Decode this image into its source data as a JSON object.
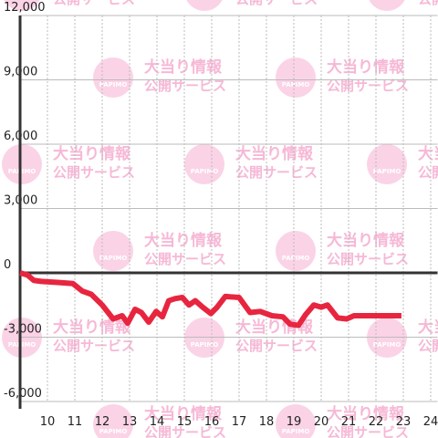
{
  "chart_data": {
    "type": "line",
    "watermark": {
      "logo": "PAPIMO",
      "line1": "大当り情報",
      "line2": "公開サービス"
    },
    "x": [
      9.0,
      9.27,
      9.5,
      9.77,
      10.43,
      10.93,
      11.27,
      11.6,
      12.0,
      12.4,
      12.73,
      12.93,
      13.2,
      13.43,
      13.7,
      13.97,
      14.2,
      14.43,
      14.67,
      14.93,
      15.17,
      15.4,
      15.67,
      15.97,
      16.2,
      16.5,
      17.0,
      17.4,
      17.77,
      18.2,
      18.6,
      18.87,
      19.17,
      19.43,
      19.73,
      20.0,
      20.23,
      20.6,
      20.93,
      21.2,
      22.93
    ],
    "series": [
      {
        "color": "#e8253f",
        "values": [
          0,
          -100,
          -350,
          -400,
          -450,
          -500,
          -850,
          -1000,
          -1500,
          -2150,
          -2000,
          -2350,
          -1700,
          -1850,
          -2300,
          -1800,
          -2050,
          -1300,
          -1200,
          -1150,
          -1500,
          -1300,
          -1600,
          -1900,
          -1600,
          -1100,
          -1150,
          -1850,
          -1800,
          -2000,
          -2050,
          -2400,
          -2450,
          -1950,
          -1500,
          -1600,
          -1500,
          -2100,
          -2150,
          -2000,
          -2000
        ]
      }
    ],
    "xlim": [
      9,
      24.25
    ],
    "xticks": [
      10,
      11,
      12,
      13,
      14,
      15,
      16,
      17,
      18,
      19,
      20,
      21,
      22,
      23,
      24
    ],
    "ylim": [
      -6000,
      12000
    ],
    "yticks": [
      {
        "value": -6000,
        "label": "-6,000"
      },
      {
        "value": -3000,
        "label": "-3,000"
      },
      0,
      {
        "value": 3000,
        "label": "3,000"
      },
      {
        "value": 6000,
        "label": "6,000"
      },
      {
        "value": 9000,
        "label": "9,000"
      },
      {
        "value": 12000,
        "label": "12,000"
      }
    ],
    "grid": true
  }
}
